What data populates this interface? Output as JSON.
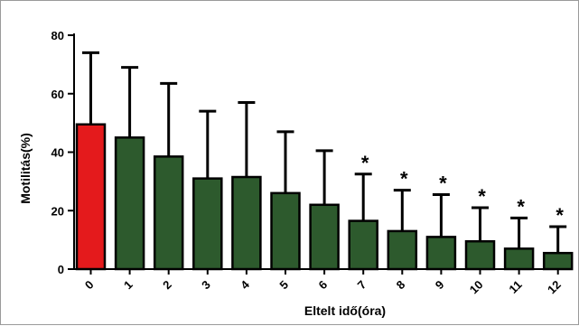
{
  "chart_data": {
    "type": "bar",
    "title": "",
    "xlabel": "Eltelt idő(óra)",
    "ylabel": "Motilitás(%)",
    "ylim": [
      0,
      80
    ],
    "yticks": [
      0,
      20,
      40,
      60,
      80
    ],
    "categories": [
      "0",
      "1",
      "2",
      "3",
      "4",
      "5",
      "6",
      "7",
      "8",
      "9",
      "10",
      "11",
      "12"
    ],
    "values": [
      49.5,
      45,
      38.5,
      31,
      31.5,
      26,
      22,
      16.5,
      13,
      11,
      9.5,
      7,
      5.5
    ],
    "error_upper": [
      74,
      69,
      63.5,
      54,
      57,
      47,
      40.5,
      32.5,
      27,
      25.5,
      21,
      17.5,
      14.5
    ],
    "significance": [
      "",
      "",
      "",
      "",
      "",
      "",
      "",
      "*",
      "*",
      "*",
      "*",
      "*",
      "*"
    ],
    "bar_colors": [
      "#e41a1c",
      "#2d5a2d",
      "#2d5a2d",
      "#2d5a2d",
      "#2d5a2d",
      "#2d5a2d",
      "#2d5a2d",
      "#2d5a2d",
      "#2d5a2d",
      "#2d5a2d",
      "#2d5a2d",
      "#2d5a2d",
      "#2d5a2d"
    ],
    "bar_stroke": "#000000",
    "grid": false,
    "legend": "none"
  }
}
